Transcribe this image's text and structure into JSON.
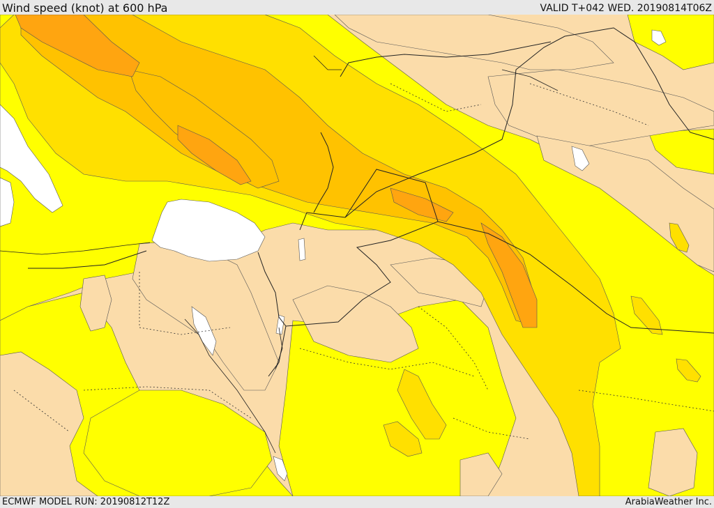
{
  "header": {
    "title": "Wind speed (knot) at 600 hPa",
    "valid": "VALID T+042 WED. 20190814T06Z"
  },
  "footer": {
    "model_run": "ECMWF MODEL RUN: 20190812T12Z",
    "credit": "ArabiaWeather Inc."
  },
  "colors": {
    "land_light": "#fbdcaa",
    "band_yellow": "#ffff00",
    "band_gold": "#ffe000",
    "band_amber": "#ffc200",
    "band_orange": "#ffa510",
    "band_dark": "#ff9000",
    "water": "#ffffff"
  }
}
